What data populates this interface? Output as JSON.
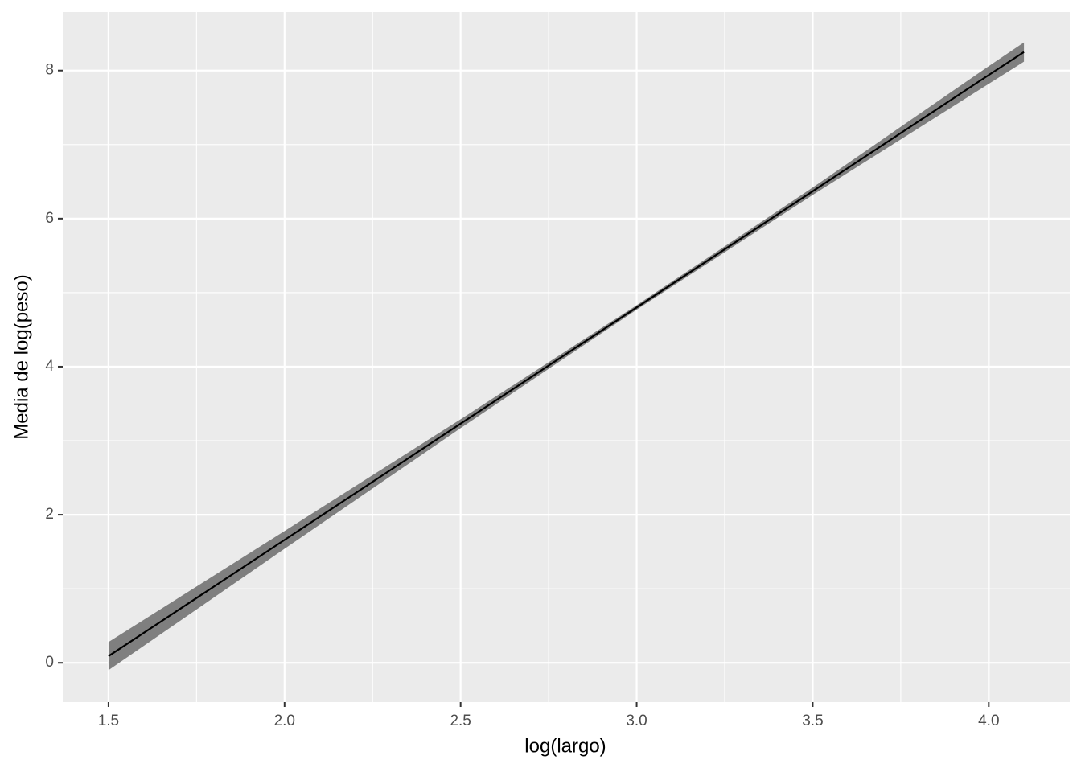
{
  "chart_data": {
    "type": "line",
    "x_label": "log(largo)",
    "y_label": "Media de log(peso)",
    "x": [
      1.5,
      2.0,
      2.5,
      3.0,
      3.5,
      4.0,
      4.1
    ],
    "series": [
      {
        "color": "#000000",
        "band_color": "#7f7f7f",
        "values": [
          0.09,
          1.66,
          3.23,
          4.8,
          6.37,
          7.94,
          8.25
        ],
        "lower": [
          -0.1,
          1.54,
          3.17,
          4.77,
          6.32,
          7.82,
          8.12
        ],
        "upper": [
          0.28,
          1.78,
          3.29,
          4.83,
          6.42,
          8.06,
          8.38
        ]
      }
    ],
    "xlim": [
      1.37,
      4.23
    ],
    "ylim": [
      -0.53,
      8.79
    ],
    "xticks": [
      {
        "value": 1.5,
        "label": "1.5"
      },
      {
        "value": 2.0,
        "label": "2.0"
      },
      {
        "value": 2.5,
        "label": "2.5"
      },
      {
        "value": 3.0,
        "label": "3.0"
      },
      {
        "value": 3.5,
        "label": "3.5"
      },
      {
        "value": 4.0,
        "label": "4.0"
      }
    ],
    "yticks": [
      0,
      2,
      4,
      6,
      8
    ],
    "grid": true
  }
}
